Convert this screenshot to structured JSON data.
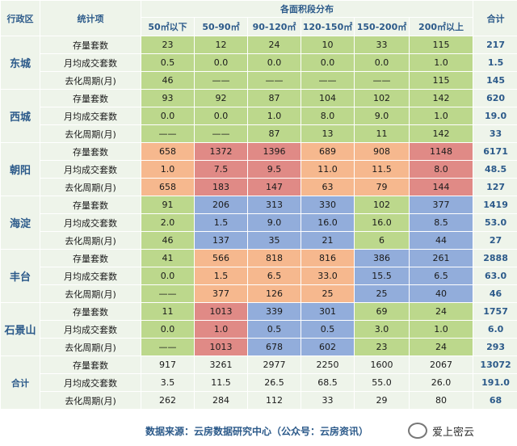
{
  "header": {
    "district": "行政区",
    "item": "统计项",
    "dist_title": "各面积段分布",
    "total": "合计",
    "ranges": [
      "50㎡以下",
      "50-90㎡",
      "90-120㎡",
      "120-150㎡",
      "150-200㎡",
      "200㎡以上"
    ]
  },
  "districts": [
    {
      "name": "东城",
      "rows": [
        {
          "label": "存量套数",
          "values": [
            "23",
            "12",
            "24",
            "10",
            "33",
            "115"
          ],
          "total": "217"
        },
        {
          "label": "月均成交套数",
          "values": [
            "0.5",
            "0.0",
            "0.0",
            "0.0",
            "0.0",
            "1.0"
          ],
          "total": "1.5"
        },
        {
          "label": "去化周期(月)",
          "values": [
            "46",
            "——",
            "——",
            "——",
            "——",
            "115"
          ],
          "total": "145"
        }
      ]
    },
    {
      "name": "西城",
      "rows": [
        {
          "label": "存量套数",
          "values": [
            "93",
            "92",
            "87",
            "104",
            "102",
            "142"
          ],
          "total": "620"
        },
        {
          "label": "月均成交套数",
          "values": [
            "0.0",
            "0.0",
            "1.0",
            "8.0",
            "9.0",
            "1.0"
          ],
          "total": "19.0"
        },
        {
          "label": "去化周期(月)",
          "values": [
            "——",
            "——",
            "87",
            "13",
            "11",
            "142"
          ],
          "total": "33"
        }
      ]
    },
    {
      "name": "朝阳",
      "rows": [
        {
          "label": "存量套数",
          "values": [
            "658",
            "1372",
            "1396",
            "689",
            "908",
            "1148"
          ],
          "total": "6171"
        },
        {
          "label": "月均成交套数",
          "values": [
            "1.0",
            "7.5",
            "9.5",
            "11.0",
            "11.5",
            "8.0"
          ],
          "total": "48.5"
        },
        {
          "label": "去化周期(月)",
          "values": [
            "658",
            "183",
            "147",
            "63",
            "79",
            "144"
          ],
          "total": "127"
        }
      ]
    },
    {
      "name": "海淀",
      "rows": [
        {
          "label": "存量套数",
          "values": [
            "91",
            "206",
            "313",
            "330",
            "102",
            "377"
          ],
          "total": "1419"
        },
        {
          "label": "月均成交套数",
          "values": [
            "2.0",
            "1.5",
            "9.0",
            "16.0",
            "16.0",
            "8.5"
          ],
          "total": "53.0"
        },
        {
          "label": "去化周期(月)",
          "values": [
            "46",
            "137",
            "35",
            "21",
            "6",
            "44"
          ],
          "total": "27"
        }
      ]
    },
    {
      "name": "丰台",
      "rows": [
        {
          "label": "存量套数",
          "values": [
            "41",
            "566",
            "818",
            "816",
            "386",
            "261"
          ],
          "total": "2888"
        },
        {
          "label": "月均成交套数",
          "values": [
            "0.0",
            "1.5",
            "6.5",
            "33.0",
            "15.5",
            "6.5"
          ],
          "total": "63.0"
        },
        {
          "label": "去化周期(月)",
          "values": [
            "——",
            "377",
            "126",
            "25",
            "25",
            "40"
          ],
          "total": "46"
        }
      ]
    },
    {
      "name": "石景山",
      "rows": [
        {
          "label": "存量套数",
          "values": [
            "11",
            "1013",
            "339",
            "301",
            "69",
            "24"
          ],
          "total": "1757"
        },
        {
          "label": "月均成交套数",
          "values": [
            "0.0",
            "1.0",
            "0.5",
            "0.5",
            "3.0",
            "1.0"
          ],
          "total": "6.0"
        },
        {
          "label": "去化周期(月)",
          "values": [
            "——",
            "1013",
            "678",
            "602",
            "23",
            "24"
          ],
          "total": "293"
        }
      ]
    }
  ],
  "summary": {
    "name": "合计",
    "rows": [
      {
        "label": "存量套数",
        "values": [
          "917",
          "3261",
          "2977",
          "2250",
          "1600",
          "2067"
        ],
        "total": "13072"
      },
      {
        "label": "月均成交套数",
        "values": [
          "3.5",
          "11.5",
          "26.5",
          "68.5",
          "55.0",
          "26.0"
        ],
        "total": "191.0"
      },
      {
        "label": "去化周期(月)",
        "values": [
          "262",
          "284",
          "112",
          "33",
          "29",
          "80"
        ],
        "total": "68"
      }
    ]
  },
  "cell_colors": {
    "green": "#bcd88c",
    "orange": "#f6b88e",
    "red": "#e08a86",
    "blue": "#92addb"
  },
  "district_colors": [
    [
      "green",
      "green",
      "green",
      "green",
      "green",
      "green"
    ],
    [
      "green",
      "green",
      "green",
      "green",
      "green",
      "green"
    ],
    [
      "orange",
      "red",
      "red",
      "orange",
      "orange",
      "red"
    ],
    [
      "green",
      "blue",
      "blue",
      "blue",
      "green",
      "blue"
    ],
    [
      "green",
      "orange",
      "orange",
      "orange",
      "blue",
      "blue"
    ],
    [
      "green",
      "red",
      "blue",
      "blue",
      "green",
      "green"
    ]
  ],
  "footer": {
    "source": "数据来源：云房数据研究中心（公众号：云房资讯）",
    "logo_icon": "wechat-icon",
    "logo_text": "爱上密云"
  }
}
